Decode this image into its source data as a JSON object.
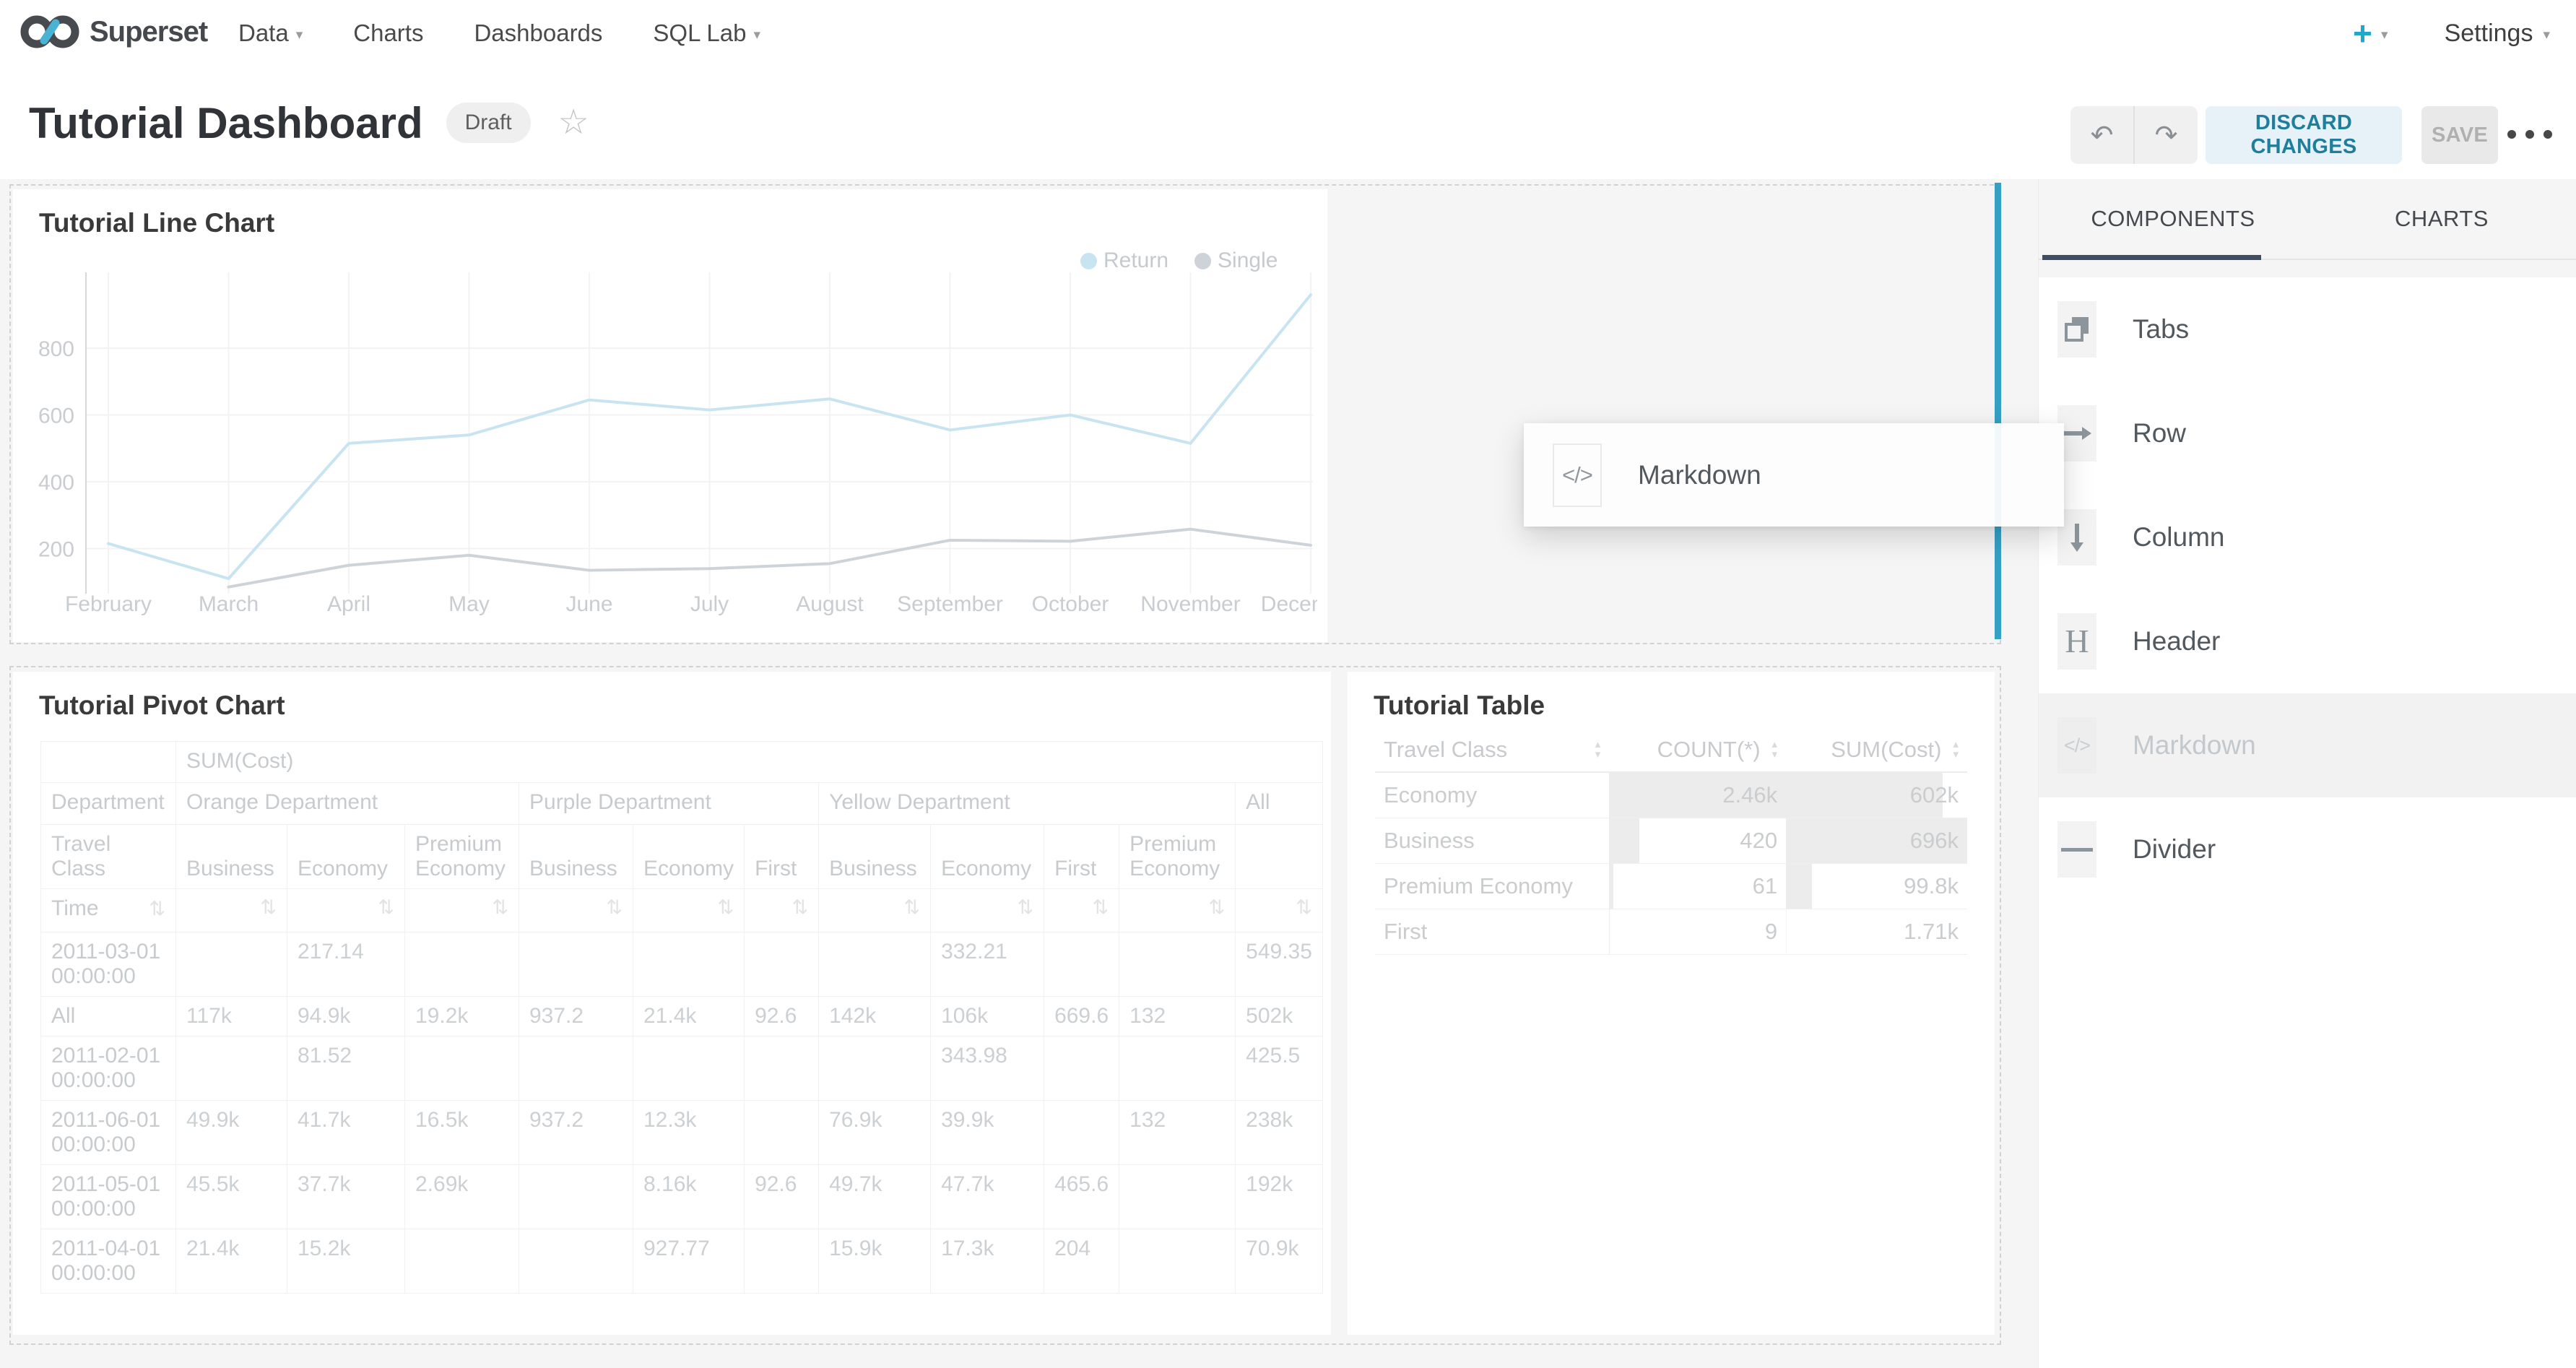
{
  "topnav": {
    "brand": "Superset",
    "menu": [
      {
        "label": "Data"
      },
      {
        "label": "Charts"
      },
      {
        "label": "Dashboards"
      },
      {
        "label": "SQL Lab"
      }
    ],
    "new_button": "+",
    "settings": "Settings"
  },
  "header": {
    "title": "Tutorial Dashboard",
    "status_badge": "Draft",
    "discard_button": "DISCARD CHANGES",
    "save_button": "SAVE"
  },
  "canvas": {
    "line_chart_title": "Tutorial Line Chart",
    "pivot_chart_title": "Tutorial Pivot Chart",
    "table_chart_title": "Tutorial Table",
    "drag_ghost_label": "Markdown",
    "drag_ghost_icon": "</>"
  },
  "sidebar": {
    "tabs": [
      {
        "label": "COMPONENTS",
        "active": true
      },
      {
        "label": "CHARTS",
        "active": false
      }
    ],
    "items": [
      {
        "label": "Tabs",
        "icon": "tabs-icon",
        "disabled": false
      },
      {
        "label": "Row",
        "icon": "row-icon",
        "disabled": false
      },
      {
        "label": "Column",
        "icon": "column-icon",
        "disabled": false
      },
      {
        "label": "Header",
        "icon": "header-icon",
        "glyph": "H",
        "disabled": false
      },
      {
        "label": "Markdown",
        "icon": "markdown-icon",
        "glyph": "</>",
        "disabled": true
      },
      {
        "label": "Divider",
        "icon": "divider-icon",
        "disabled": false
      }
    ]
  },
  "colors": {
    "accent": "#20a7c9",
    "accent_dark": "#1f7e9c",
    "drop_indicator": "#35a0c4",
    "tab_indicator": "#3f4d63"
  },
  "chart_data": [
    {
      "type": "line",
      "title": "Tutorial Line Chart",
      "categories": [
        "February",
        "March",
        "April",
        "May",
        "June",
        "July",
        "August",
        "September",
        "October",
        "November",
        "December"
      ],
      "series": [
        {
          "name": "Return",
          "color": "#c9e4f1",
          "values": [
            215,
            110,
            515,
            540,
            645,
            615,
            648,
            555,
            600,
            515,
            960
          ]
        },
        {
          "name": "Single",
          "color": "#ced3da",
          "values": [
            null,
            85,
            150,
            180,
            135,
            140,
            155,
            225,
            222,
            258,
            210
          ]
        }
      ],
      "yticks": [
        200,
        400,
        600,
        800
      ],
      "ylim": [
        0,
        1000
      ],
      "xlabel": "",
      "ylabel": "",
      "grid": true,
      "legend_position": "top-right"
    },
    {
      "type": "table",
      "title": "Tutorial Pivot Chart",
      "metric_header": "SUM(Cost)",
      "row_dim": "Department",
      "col_dim": "Travel Class",
      "time_label": "Time",
      "sort_icon": "⇅",
      "groups": [
        {
          "label": "Orange Department",
          "cols": [
            "Business",
            "Economy",
            "Premium Economy"
          ]
        },
        {
          "label": "Purple Department",
          "cols": [
            "Business",
            "Economy",
            "First"
          ]
        },
        {
          "label": "Yellow Department",
          "cols": [
            "Business",
            "Economy",
            "First",
            "Premium Economy"
          ]
        }
      ],
      "all_label": "All",
      "rows": [
        {
          "time": "2011-03-01 00:00:00",
          "values": [
            "",
            "217.14",
            "",
            "",
            "",
            "",
            "",
            "332.21",
            "",
            "",
            "549.35"
          ]
        },
        {
          "time": "All",
          "values": [
            "117k",
            "94.9k",
            "19.2k",
            "937.2",
            "21.4k",
            "92.6",
            "142k",
            "106k",
            "669.6",
            "132",
            "502k"
          ]
        },
        {
          "time": "2011-02-01 00:00:00",
          "values": [
            "",
            "81.52",
            "",
            "",
            "",
            "",
            "",
            "343.98",
            "",
            "",
            "425.5"
          ]
        },
        {
          "time": "2011-06-01 00:00:00",
          "values": [
            "49.9k",
            "41.7k",
            "16.5k",
            "937.2",
            "12.3k",
            "",
            "76.9k",
            "39.9k",
            "",
            "132",
            "238k"
          ]
        },
        {
          "time": "2011-05-01 00:00:00",
          "values": [
            "45.5k",
            "37.7k",
            "2.69k",
            "",
            "8.16k",
            "92.6",
            "49.7k",
            "47.7k",
            "465.6",
            "",
            "192k"
          ]
        },
        {
          "time": "2011-04-01 00:00:00",
          "values": [
            "21.4k",
            "15.2k",
            "",
            "",
            "927.77",
            "",
            "15.9k",
            "17.3k",
            "204",
            "",
            "70.9k"
          ]
        }
      ]
    },
    {
      "type": "table",
      "title": "Tutorial Table",
      "columns": [
        "Travel Class",
        "COUNT(*)",
        "SUM(Cost)"
      ],
      "rows": [
        {
          "travel_class": "Economy",
          "count": 2460,
          "count_label": "2.46k",
          "cost": 602000,
          "cost_label": "602k"
        },
        {
          "travel_class": "Business",
          "count": 420,
          "count_label": "420",
          "cost": 696000,
          "cost_label": "696k"
        },
        {
          "travel_class": "Premium Economy",
          "count": 61,
          "count_label": "61",
          "cost": 99800,
          "cost_label": "99.8k"
        },
        {
          "travel_class": "First",
          "count": 9,
          "count_label": "9",
          "cost": 1710,
          "cost_label": "1.71k"
        }
      ]
    }
  ]
}
